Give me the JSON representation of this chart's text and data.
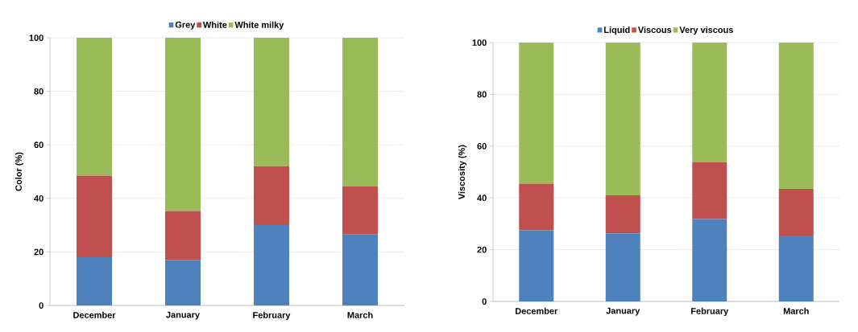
{
  "chart_data": [
    {
      "type": "bar",
      "stacked": true,
      "ylabel": "Color (%)",
      "categories": [
        "December",
        "January",
        "February",
        "March"
      ],
      "series": [
        {
          "name": "Grey",
          "color": "#4f81bd",
          "values": [
            18,
            17,
            30,
            26.5
          ]
        },
        {
          "name": "White",
          "color": "#c0504d",
          "values": [
            30.5,
            18.3,
            22,
            18
          ]
        },
        {
          "name": "White milky",
          "color": "#9bbb59",
          "values": [
            51.5,
            64.7,
            48,
            55.5
          ]
        }
      ],
      "ylim": [
        0,
        100
      ],
      "yticks": [
        0,
        20,
        40,
        60,
        80,
        100
      ],
      "grid": "y",
      "legend": "top"
    },
    {
      "type": "bar",
      "stacked": true,
      "ylabel": "Viscosity (%)",
      "categories": [
        "December",
        "January",
        "February",
        "March"
      ],
      "series": [
        {
          "name": "Liquid",
          "color": "#4f81bd",
          "values": [
            27.5,
            26.3,
            31.8,
            25.5
          ]
        },
        {
          "name": "Viscous",
          "color": "#c0504d",
          "values": [
            18,
            14.7,
            21.9,
            18
          ]
        },
        {
          "name": "Very viscous",
          "color": "#9bbb59",
          "values": [
            54.5,
            59,
            46.3,
            56.5
          ]
        }
      ],
      "ylim": [
        0,
        100
      ],
      "yticks": [
        0,
        20,
        40,
        60,
        80,
        100
      ],
      "grid": "y",
      "legend": "top"
    }
  ]
}
